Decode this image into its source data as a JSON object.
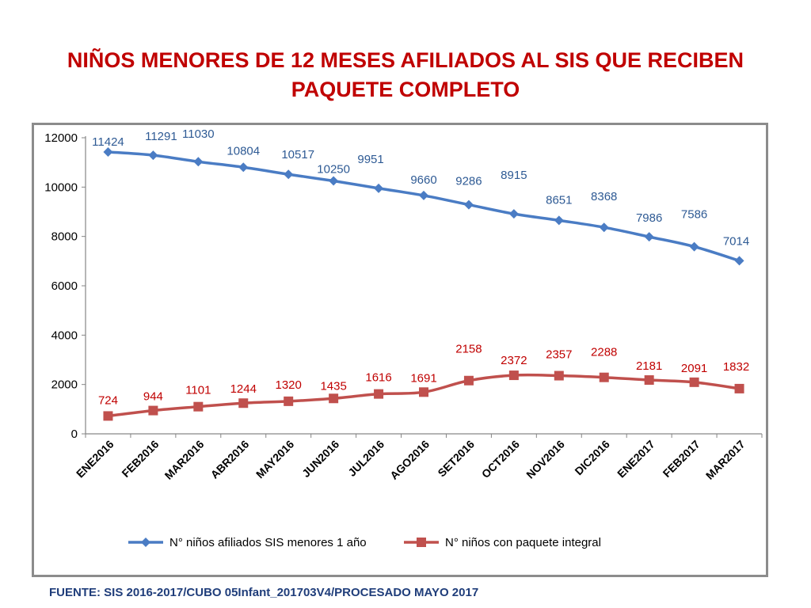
{
  "title_line1": "NIÑOS MENORES DE 12 MESES AFILIADOS AL SIS QUE RECIBEN",
  "title_line2": "PAQUETE COMPLETO",
  "source": "FUENTE: SIS 2016-2017/CUBO 05Infant_201703V4/PROCESADO MAYO 2017",
  "colors": {
    "title": "#c00000",
    "series1": "#4a7cc4",
    "series1_label": "#2e5a94",
    "series2": "#c0504d",
    "series2_label": "#c00000",
    "source": "#1f3d7a"
  },
  "chart_data": {
    "type": "line",
    "categories": [
      "ENE2016",
      "FEB2016",
      "MAR2016",
      "ABR2016",
      "MAY2016",
      "JUN2016",
      "JUL2016",
      "AGO2016",
      "SET2016",
      "OCT2016",
      "NOV2016",
      "DIC2016",
      "ENE2017",
      "FEB2017",
      "MAR2017"
    ],
    "yticks": [
      "0",
      "2000",
      "4000",
      "6000",
      "8000",
      "10000",
      "12000"
    ],
    "ylim": [
      0,
      12000
    ],
    "grid": false,
    "legend_position": "bottom",
    "series": [
      {
        "name": "N° niños afiliados SIS menores 1 año",
        "marker": "diamond",
        "values": [
          11424,
          11291,
          11030,
          10804,
          10517,
          10250,
          9951,
          9660,
          9286,
          8915,
          8651,
          8368,
          7986,
          7586,
          7014
        ],
        "labels": [
          "11424",
          "11291",
          "11030",
          "10804",
          "10517",
          "10250",
          "9951",
          "9660",
          "9286",
          "8915",
          "8651",
          "8368",
          "7986",
          "7586",
          "7014"
        ]
      },
      {
        "name": "N° niños con paquete integral",
        "marker": "square",
        "values": [
          724,
          944,
          1101,
          1244,
          1320,
          1435,
          1616,
          1691,
          2158,
          2372,
          2357,
          2288,
          2181,
          2091,
          1832
        ],
        "labels": [
          "724",
          "944",
          "1101",
          "1244",
          "1320",
          "1435",
          "1616",
          "1691",
          "2158",
          "2372",
          "2357",
          "2288",
          "2181",
          "2091",
          "1832"
        ]
      }
    ]
  }
}
